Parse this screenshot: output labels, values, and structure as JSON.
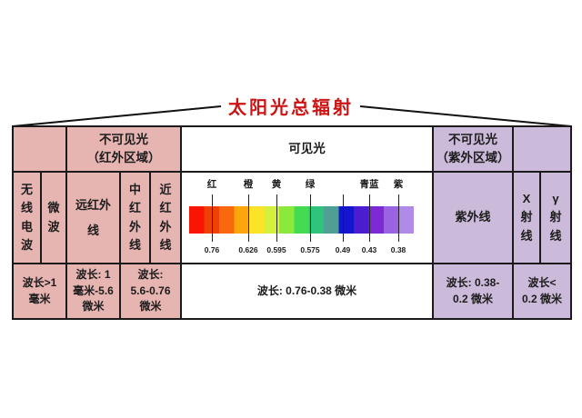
{
  "title": "太阳光总辐射",
  "colors": {
    "infrared_side_pink": "#e6b5b2",
    "ultraviolet_side_purple": "#ccbada",
    "title_red": "#cc1414",
    "grid_line": "#1a1a1a"
  },
  "table": {
    "header": {
      "infrared_region": "不可见光\n（红外区域）",
      "visible": "可见光",
      "uv_region": "不可见光\n（紫外区域）"
    },
    "bands": {
      "radio": "无\n线\n电\n波",
      "microwave": "微\n波",
      "far_infrared": "远红外\n线",
      "mid_infrared": "中\n红\n外\n线",
      "near_infrared": "近\n红\n外\n线",
      "ultraviolet": "紫外线",
      "x_ray": "X\n射\n线",
      "gamma_ray": "γ\n射\n线"
    },
    "wavelengths": {
      "radio_microwave": "波长>1\n毫米",
      "far_infrared": "波长: 1\n毫米-5.6\n微米",
      "mid_near_infrared": "波长:\n5.6-0.76\n微米",
      "visible": "波长: 0.76-0.38 微米",
      "ultraviolet": "波长: 0.38-\n0.2 微米",
      "x_gamma": "波长<\n0.2 微米"
    }
  },
  "chart_data": {
    "type": "heatmap",
    "title": "可见光",
    "color_labels": [
      {
        "text": "红",
        "pos": 33
      },
      {
        "text": "橙",
        "pos": 73
      },
      {
        "text": "黄",
        "pos": 104
      },
      {
        "text": "绿",
        "pos": 141
      },
      {
        "text": "青蓝",
        "pos": 206
      },
      {
        "text": "紫",
        "pos": 238
      }
    ],
    "ticks": [
      {
        "value": "0.76",
        "pos": 33
      },
      {
        "value": "0.626",
        "pos": 73
      },
      {
        "value": "0.595",
        "pos": 104
      },
      {
        "value": "0.575",
        "pos": 141
      },
      {
        "value": "0.49",
        "pos": 177
      },
      {
        "value": "0.43",
        "pos": 206
      },
      {
        "value": "0.38",
        "pos": 238
      }
    ],
    "bar_colors": [
      "#fa1404",
      "#ee4106",
      "#f8690d",
      "#fba70c",
      "#fde22a",
      "#d3f03c",
      "#8ae93b",
      "#44da52",
      "#2fc47c",
      "#4f9f95",
      "#1416cd",
      "#4b1cd0",
      "#7d2ad5",
      "#9a63e2",
      "#b08ae9"
    ]
  }
}
